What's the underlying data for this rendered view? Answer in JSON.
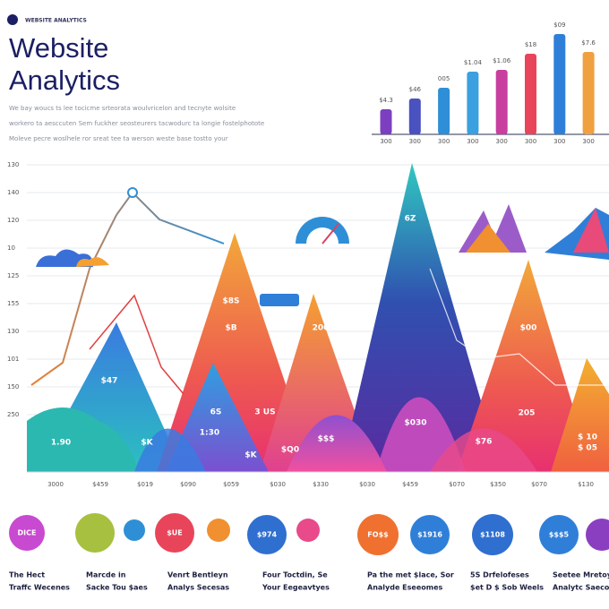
{
  "header": {
    "brand": "WEBSITE ANALYTICS",
    "title": [
      "Website",
      "Analytics"
    ],
    "description": [
      "We bay woucs ts lee tocicme srteorata woulvricelon and tecnyte wolsite",
      "workero ta aesccuten Sem fuckher seosteurers tacwodurc ta longie fostelphotote",
      "Moleve pecre woslhele ror sreat tee ta werson weste base tostto your"
    ]
  },
  "top_chart": {
    "values": [
      28,
      40,
      52,
      70,
      72,
      90,
      112,
      92
    ],
    "top_labels": [
      "$4.3",
      "$46",
      "005",
      "$1.04",
      "$1.06",
      "$18",
      "$09",
      "$7.6"
    ],
    "bottom_labels": [
      "300",
      "300",
      "300",
      "300",
      "300",
      "300",
      "300",
      "300"
    ]
  },
  "main_chart": {
    "y_labels": [
      "130",
      "140",
      "120",
      "10",
      "125",
      "155",
      "130",
      "101",
      "150",
      "250"
    ],
    "x_labels": [
      "3000",
      "$459",
      "$019",
      "$090",
      "$059",
      "$030",
      "$330",
      "$030",
      "$459",
      "$070",
      "$350",
      "$070",
      "$130"
    ],
    "peak_labels": [
      "$47",
      "$8S",
      "$B",
      "6S",
      "1:30",
      "3 US",
      "200",
      "6Z",
      "$030",
      "1.90",
      "$K",
      "$K",
      "$Q0",
      "$$$",
      "$00",
      "205",
      "$76",
      "$ 05",
      "$ 10"
    ]
  },
  "circles": [
    "DICE",
    "$UE",
    "$974",
    "FO$$",
    "$1916",
    "$1108",
    "$$$5"
  ],
  "captions": [
    [
      "The Hect",
      "Traffc Wecenes"
    ],
    [
      "Marcde in",
      "Sacke Tou $aes"
    ],
    [
      "Venrt Bentleyn",
      "Analys Secesas"
    ],
    [
      "Four Toctdin, Se",
      "Your Eegeavtyes"
    ],
    [
      "Pa the met $lace, Sor",
      "Analyde Eseeomes"
    ],
    [
      "5S Drfelofeses",
      "$et D $ Sob Weels"
    ],
    [
      "Seetee Mretoyto",
      "Analytc Saecoe"
    ]
  ]
}
